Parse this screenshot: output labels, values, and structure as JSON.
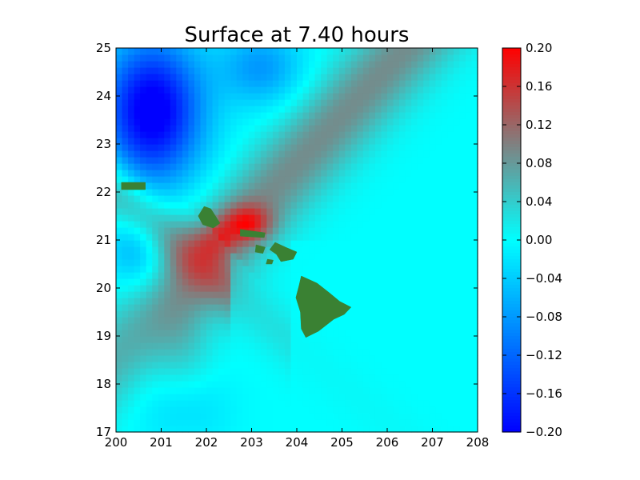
{
  "chart_data": {
    "type": "heatmap",
    "title": "Surface at 7.40 hours",
    "xlabel": "",
    "ylabel": "",
    "xlim": [
      200,
      208
    ],
    "ylim": [
      17,
      25
    ],
    "x_ticks": [
      "200",
      "201",
      "202",
      "203",
      "204",
      "205",
      "206",
      "207",
      "208"
    ],
    "y_ticks": [
      "17",
      "18",
      "19",
      "20",
      "21",
      "22",
      "23",
      "24",
      "25"
    ],
    "colorbar": {
      "vmin": -0.2,
      "vmax": 0.2,
      "ticks": [
        "0.20",
        "0.16",
        "0.12",
        "0.08",
        "0.04",
        "0.00",
        "−0.04",
        "−0.08",
        "−0.12",
        "−0.16",
        "−0.20"
      ],
      "colors": [
        {
          "value": -0.2,
          "color": "#0000ff"
        },
        {
          "value": 0.0,
          "color": "#00ffff"
        },
        {
          "value": 0.1,
          "color": "#808080"
        },
        {
          "value": 0.2,
          "color": "#ff0000"
        }
      ]
    },
    "land_color": "#3a8133",
    "features": [
      {
        "kind": "island",
        "name": "Hawaii",
        "outline": [
          [
            204.1,
            20.25
          ],
          [
            204.45,
            20.1
          ],
          [
            204.72,
            19.9
          ],
          [
            204.95,
            19.72
          ],
          [
            205.2,
            19.6
          ],
          [
            205.05,
            19.45
          ],
          [
            204.82,
            19.35
          ],
          [
            204.48,
            19.1
          ],
          [
            204.2,
            18.97
          ],
          [
            204.1,
            19.15
          ],
          [
            204.08,
            19.5
          ],
          [
            203.98,
            19.8
          ],
          [
            204.05,
            20.05
          ]
        ]
      },
      {
        "kind": "island",
        "name": "Maui",
        "outline": [
          [
            203.52,
            20.95
          ],
          [
            203.75,
            20.85
          ],
          [
            204.0,
            20.75
          ],
          [
            203.92,
            20.6
          ],
          [
            203.65,
            20.55
          ],
          [
            203.55,
            20.7
          ],
          [
            203.4,
            20.8
          ]
        ]
      },
      {
        "kind": "island",
        "name": "Molokai",
        "outline": [
          [
            202.75,
            21.22
          ],
          [
            203.3,
            21.15
          ],
          [
            203.28,
            21.05
          ],
          [
            202.75,
            21.08
          ]
        ]
      },
      {
        "kind": "island",
        "name": "Lanai",
        "outline": [
          [
            203.1,
            20.9
          ],
          [
            203.3,
            20.85
          ],
          [
            203.25,
            20.72
          ],
          [
            203.08,
            20.75
          ]
        ]
      },
      {
        "kind": "island",
        "name": "Kahoolawe",
        "outline": [
          [
            203.35,
            20.6
          ],
          [
            203.48,
            20.58
          ],
          [
            203.45,
            20.5
          ],
          [
            203.32,
            20.5
          ]
        ]
      },
      {
        "kind": "island",
        "name": "Oahu",
        "outline": [
          [
            201.95,
            21.7
          ],
          [
            202.1,
            21.65
          ],
          [
            202.3,
            21.35
          ],
          [
            202.15,
            21.25
          ],
          [
            201.92,
            21.32
          ],
          [
            201.82,
            21.5
          ]
        ]
      },
      {
        "kind": "island",
        "name": "Kauai",
        "outline": [
          [
            200.12,
            22.2
          ],
          [
            200.65,
            22.2
          ],
          [
            200.65,
            22.05
          ],
          [
            200.12,
            22.05
          ]
        ]
      }
    ]
  }
}
